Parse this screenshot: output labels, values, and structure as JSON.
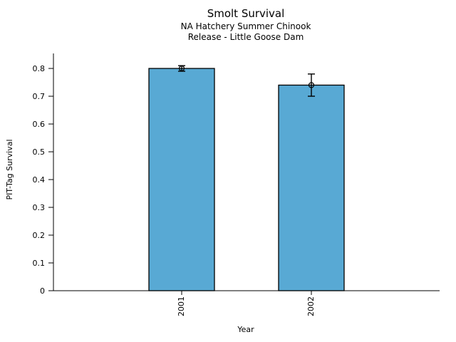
{
  "figure": {
    "background": "#ffffff"
  },
  "chart_data": {
    "type": "bar",
    "title": "Smolt Survival",
    "subtitle_line1": "NA Hatchery Summer Chinook",
    "subtitle_line2": "Release - Little Goose Dam",
    "xlabel": "Year",
    "ylabel": "PIT-Tag Survival",
    "categories": [
      "2001",
      "2002"
    ],
    "values": [
      0.8,
      0.74
    ],
    "error_upper": [
      0.81,
      0.78
    ],
    "error_lower": [
      0.79,
      0.7
    ],
    "ytick_values": [
      0,
      0.1,
      0.2,
      0.3,
      0.4,
      0.5,
      0.6,
      0.7,
      0.8
    ],
    "ytick_labels": [
      "0",
      "0.1",
      "0.2",
      "0.3",
      "0.4",
      "0.5",
      "0.6",
      "0.7",
      "0.8"
    ],
    "ylim": [
      0,
      0.854
    ],
    "grid": false,
    "legend": false,
    "bar_color": "#58A9D4",
    "bar_edge_color": "#000000",
    "error_bar_color": "#000000",
    "error_marker": "open-circle"
  }
}
